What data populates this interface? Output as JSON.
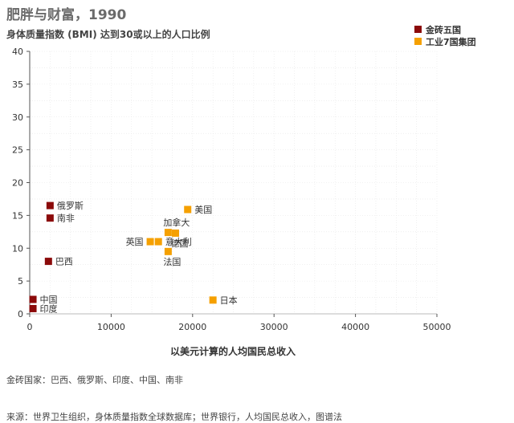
{
  "chart_data": {
    "type": "scatter",
    "title": "肥胖与财富，1990",
    "subtitle": "身体质量指数 (BMI) 达到30或以上的人口比例",
    "xlabel": "以美元计算的人均国民总收入",
    "ylabel": "",
    "xlim": [
      0,
      50000
    ],
    "ylim": [
      0,
      40
    ],
    "xticks": [
      0,
      10000,
      20000,
      30000,
      40000,
      50000
    ],
    "yticks": [
      0,
      5,
      10,
      15,
      20,
      25,
      30,
      35,
      40
    ],
    "grid": true,
    "legend_position": "top-right",
    "series": [
      {
        "name": "金砖五国",
        "color": "#8b0a0a",
        "points": [
          {
            "label": "俄罗斯",
            "x": 2500,
            "y": 16.5,
            "label_side": "right"
          },
          {
            "label": "南非",
            "x": 2500,
            "y": 14.6,
            "label_side": "right"
          },
          {
            "label": "巴西",
            "x": 2300,
            "y": 8.0,
            "label_side": "right"
          },
          {
            "label": "中国",
            "x": 400,
            "y": 2.2,
            "label_side": "right"
          },
          {
            "label": "印度",
            "x": 400,
            "y": 0.8,
            "label_side": "right"
          }
        ]
      },
      {
        "name": "工业7国集团",
        "color": "#f5a000",
        "points": [
          {
            "label": "美国",
            "x": 19400,
            "y": 15.9,
            "label_side": "right"
          },
          {
            "label": "加拿大",
            "x": 17000,
            "y": 12.4,
            "label_side": "above"
          },
          {
            "label": "德国",
            "x": 17900,
            "y": 12.3,
            "label_side": "below"
          },
          {
            "label": "英国",
            "x": 14800,
            "y": 11.0,
            "label_side": "left"
          },
          {
            "label": "意大利",
            "x": 15800,
            "y": 11.0,
            "label_side": "right"
          },
          {
            "label": "法国",
            "x": 17000,
            "y": 9.5,
            "label_side": "below"
          },
          {
            "label": "日本",
            "x": 22500,
            "y": 2.1,
            "label_side": "right"
          }
        ]
      }
    ]
  },
  "footer": {
    "note": "金砖国家：巴西、俄罗斯、印度、中国、南非",
    "source": "来源：世界卫生组织，身体质量指数全球数据库；世界银行，人均国民总收入，图谱法"
  }
}
